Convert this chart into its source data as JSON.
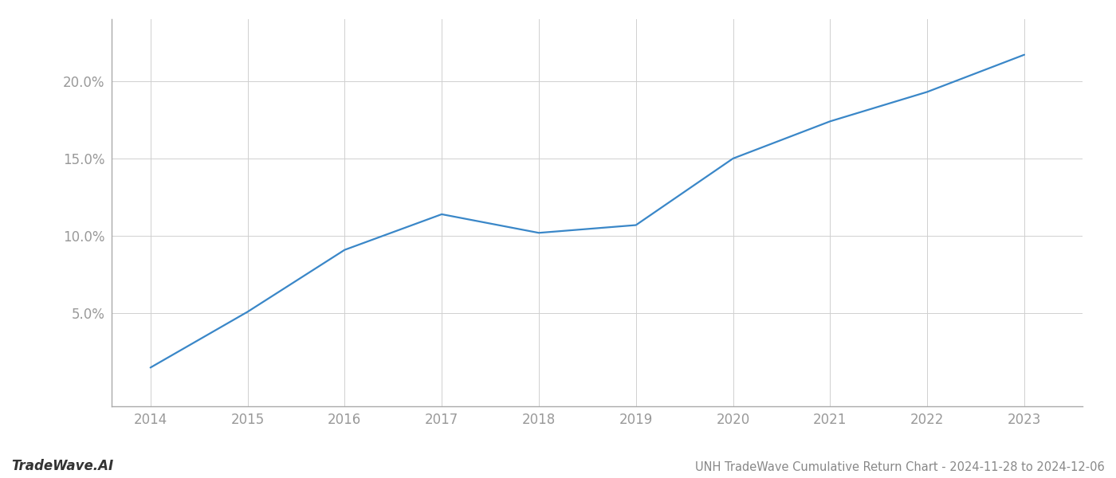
{
  "x_values": [
    2014,
    2015,
    2016,
    2017,
    2018,
    2019,
    2020,
    2021,
    2022,
    2023
  ],
  "y_values": [
    1.5,
    5.1,
    9.1,
    11.4,
    10.2,
    10.7,
    15.0,
    17.4,
    19.3,
    21.7
  ],
  "line_color": "#3a87c8",
  "line_width": 1.6,
  "title": "UNH TradeWave Cumulative Return Chart - 2024-11-28 to 2024-12-06",
  "footer_left": "TradeWave.AI",
  "xlim": [
    2013.6,
    2023.6
  ],
  "ylim": [
    -1.0,
    24.0
  ],
  "yticks": [
    5.0,
    10.0,
    15.0,
    20.0
  ],
  "ytick_labels": [
    "5.0%",
    "10.0%",
    "15.0%",
    "20.0%"
  ],
  "xticks": [
    2014,
    2015,
    2016,
    2017,
    2018,
    2019,
    2020,
    2021,
    2022,
    2023
  ],
  "background_color": "#ffffff",
  "grid_color": "#d0d0d0",
  "tick_label_color": "#999999",
  "footer_left_color": "#333333",
  "footer_right_color": "#888888",
  "spine_color": "#aaaaaa"
}
